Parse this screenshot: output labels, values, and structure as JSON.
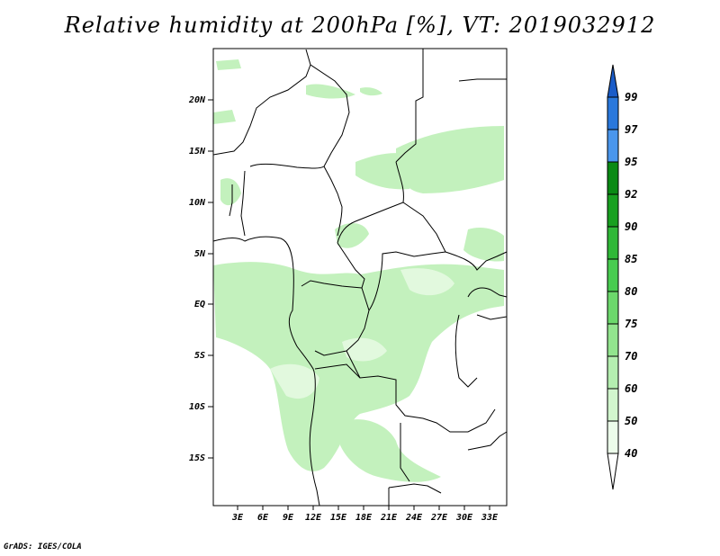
{
  "title": "Relative humidity at 200hPa [%], VT: 2019032912",
  "credit": "GrADS: IGES/COLA",
  "map": {
    "lat_labels": [
      "20N",
      "15N",
      "10N",
      "5N",
      "EQ",
      "5S",
      "10S",
      "15S"
    ],
    "lon_labels": [
      "3E",
      "6E",
      "9E",
      "12E",
      "15E",
      "18E",
      "21E",
      "24E",
      "27E",
      "30E",
      "33E"
    ]
  },
  "colorbar": {
    "labels": [
      "99",
      "97",
      "95",
      "92",
      "90",
      "85",
      "80",
      "75",
      "70",
      "60",
      "50",
      "40"
    ],
    "colors": [
      "#1a5cc8",
      "#2a78dc",
      "#4a96ec",
      "#0a8a14",
      "#18a020",
      "#30b838",
      "#48cc50",
      "#6cd86c",
      "#92e48e",
      "#b4eeb0",
      "#d2f6ce",
      "#ecfcea",
      "#ffffff"
    ]
  }
}
